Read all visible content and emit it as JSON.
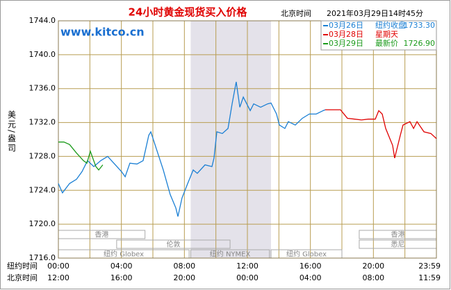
{
  "chart_data": {
    "type": "line",
    "title": "24小时黄金现货买入价格",
    "time_zone": "北京时间",
    "timestamp": "2021年03月29日14时45分",
    "watermark": "www.kitco.cn",
    "y_label": "美元/盎司",
    "xlim": [
      0,
      24
    ],
    "ylim": [
      1716,
      1744
    ],
    "yticks": [
      {
        "value": 1744,
        "label": "1744.0"
      },
      {
        "value": 1740,
        "label": "1740.0"
      },
      {
        "value": 1736,
        "label": "1736.0"
      },
      {
        "value": 1732,
        "label": "1732.0"
      },
      {
        "value": 1728,
        "label": "1728.0"
      },
      {
        "value": 1724,
        "label": "1724.0"
      },
      {
        "value": 1720,
        "label": "1720.0"
      },
      {
        "value": 1716,
        "label": "1716.0"
      }
    ],
    "xgrid": [
      0,
      2,
      4,
      6,
      8,
      10,
      12,
      14,
      16,
      18,
      20,
      22,
      24
    ],
    "x_rows": [
      {
        "name": "纽约时间",
        "ticks": [
          {
            "value": 0,
            "label": "00:00"
          },
          {
            "value": 4,
            "label": "04:00"
          },
          {
            "value": 8,
            "label": "08:00"
          },
          {
            "value": 12,
            "label": "12:00"
          },
          {
            "value": 16,
            "label": "16:00"
          },
          {
            "value": 20,
            "label": "20:00"
          },
          {
            "value": 24,
            "label": "23:59"
          }
        ]
      },
      {
        "name": "北京时间",
        "ticks": [
          {
            "value": 0,
            "label": "12:00"
          },
          {
            "value": 4,
            "label": "16:00"
          },
          {
            "value": 8,
            "label": "20:00"
          },
          {
            "value": 12,
            "label": "00:00"
          },
          {
            "value": 16,
            "label": "04:00"
          },
          {
            "value": 20,
            "label": "08:00"
          },
          {
            "value": 24,
            "label": "11:59"
          }
        ]
      }
    ],
    "shaded": [
      8.4,
      13.5
    ],
    "sessions": [
      [
        {
          "name": "香港",
          "start": 0,
          "end": 5.5
        },
        {
          "name": "香港",
          "start": 19.1,
          "end": 24
        }
      ],
      [
        {
          "name": "伦敦",
          "start": 3.7,
          "end": 10.9
        },
        {
          "name": "悉尼",
          "start": 19.1,
          "end": 24
        }
      ],
      [
        {
          "name": "纽约 Globex",
          "start": 0,
          "end": 8.3
        },
        {
          "name": "纽约 NYMEX",
          "start": 8.4,
          "end": 13.4
        },
        {
          "name": "纽约 Globex",
          "start": 13.5,
          "end": 18
        }
      ]
    ],
    "series": [
      {
        "name": "03月26日",
        "note": "纽约收盘",
        "price": "1733.30",
        "color": "#1a7fd4",
        "x": [
          0,
          0.26,
          0.71,
          1.15,
          1.5,
          1.85,
          2.25,
          2.69,
          3.13,
          3.57,
          4.01,
          4.24,
          4.54,
          4.99,
          5.38,
          5.74,
          5.87,
          6.22,
          6.66,
          7.1,
          7.46,
          7.59,
          7.85,
          8.21,
          8.56,
          8.82,
          9.31,
          9.75,
          9.88,
          10.06,
          10.41,
          10.77,
          11.03,
          11.29,
          11.52,
          11.74,
          12.18,
          12.4,
          12.84,
          13.28,
          13.5,
          13.85,
          14.03,
          14.38,
          14.6,
          15.04,
          15.49,
          15.93,
          16.37,
          16.81,
          16.94
        ],
        "values": [
          1724.8,
          1723.7,
          1724.8,
          1725.3,
          1726.2,
          1727.5,
          1726.8,
          1727.5,
          1728.0,
          1727.1,
          1726.2,
          1725.6,
          1727.2,
          1727.1,
          1727.5,
          1730.5,
          1730.9,
          1728.9,
          1726.4,
          1723.5,
          1721.9,
          1720.9,
          1723.1,
          1724.8,
          1726.4,
          1726.0,
          1727.0,
          1726.8,
          1727.8,
          1730.9,
          1730.7,
          1731.3,
          1734.2,
          1736.8,
          1733.8,
          1735.0,
          1733.4,
          1734.2,
          1733.8,
          1734.2,
          1734.3,
          1733.0,
          1731.7,
          1731.3,
          1732.1,
          1731.7,
          1732.5,
          1733.0,
          1733.0,
          1733.4,
          1733.5
        ]
      },
      {
        "name": "03月28日",
        "note": "星期天",
        "color": "#e00000",
        "x": [
          16.94,
          17.91,
          18.35,
          18.8,
          19.24,
          19.68,
          20.12,
          20.34,
          20.56,
          20.78,
          21.22,
          21.35,
          21.71,
          21.88,
          22.32,
          22.55,
          22.77,
          23.21,
          23.65,
          24
        ],
        "values": [
          1733.5,
          1733.5,
          1732.5,
          1732.4,
          1732.3,
          1732.4,
          1732.4,
          1733.4,
          1733.0,
          1731.3,
          1729.3,
          1727.8,
          1730.5,
          1731.7,
          1732.1,
          1731.3,
          1732.1,
          1730.9,
          1730.7,
          1730.1
        ]
      },
      {
        "name": "03月29日",
        "note": "最新价",
        "price": "1726.90",
        "color": "#1a9a1a",
        "x": [
          0,
          0.35,
          0.71,
          1.15,
          1.59,
          1.81,
          2.03,
          2.38,
          2.56,
          2.82
        ],
        "values": [
          1729.7,
          1729.7,
          1729.4,
          1728.4,
          1727.5,
          1727.2,
          1728.6,
          1726.8,
          1726.4,
          1727.0
        ]
      }
    ]
  }
}
